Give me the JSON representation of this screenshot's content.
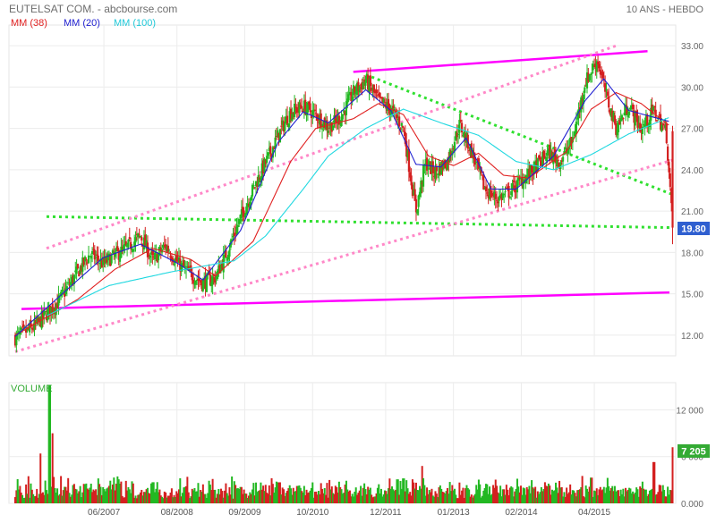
{
  "header": {
    "title": "EUTELSAT COM. - abcbourse.com",
    "period": "10 ANS - HEBDO",
    "legend": [
      {
        "label": "MM (38)",
        "color": "#e02020"
      },
      {
        "label": "MM (20)",
        "color": "#2020d0"
      },
      {
        "label": "MM (100)",
        "color": "#20d8e0"
      }
    ]
  },
  "chart_data": [
    {
      "type": "candlestick",
      "title": "EUTELSAT COM. - abcbourse.com",
      "period": "10 ANS - HEBDO",
      "x_tick_labels": [
        "06/2007",
        "08/2008",
        "09/2009",
        "10/2010",
        "12/2011",
        "01/2013",
        "02/2014",
        "04/2015"
      ],
      "y_tick_labels": [
        "12.00",
        "15.00",
        "18.00",
        "21.00",
        "24.00",
        "27.00",
        "30.00",
        "33.00"
      ],
      "ylim": [
        10.5,
        34.5
      ],
      "last_price": "19.80",
      "close_path": [
        [
          2006.0,
          11.8
        ],
        [
          2006.3,
          12.6
        ],
        [
          2006.7,
          14.5
        ],
        [
          2007.0,
          16.6
        ],
        [
          2007.2,
          17.9
        ],
        [
          2007.4,
          17.2
        ],
        [
          2007.6,
          17.8
        ],
        [
          2007.8,
          18.4
        ],
        [
          2008.0,
          19.2
        ],
        [
          2008.2,
          17.4
        ],
        [
          2008.4,
          18.5
        ],
        [
          2008.6,
          17.2
        ],
        [
          2008.8,
          16.4
        ],
        [
          2009.0,
          15.8
        ],
        [
          2009.2,
          16.2
        ],
        [
          2009.4,
          18.2
        ],
        [
          2009.6,
          20.5
        ],
        [
          2009.8,
          22.6
        ],
        [
          2010.0,
          24.5
        ],
        [
          2010.2,
          26.5
        ],
        [
          2010.4,
          28.2
        ],
        [
          2010.6,
          28.6
        ],
        [
          2010.8,
          28.0
        ],
        [
          2011.0,
          27.1
        ],
        [
          2011.2,
          27.8
        ],
        [
          2011.4,
          29.6
        ],
        [
          2011.6,
          30.5
        ],
        [
          2011.8,
          29.0
        ],
        [
          2012.0,
          28.4
        ],
        [
          2012.2,
          27.0
        ],
        [
          2012.4,
          21.0
        ],
        [
          2012.55,
          24.5
        ],
        [
          2012.7,
          23.8
        ],
        [
          2012.9,
          24.6
        ],
        [
          2013.1,
          27.3
        ],
        [
          2013.3,
          25.2
        ],
        [
          2013.5,
          22.6
        ],
        [
          2013.7,
          21.9
        ],
        [
          2013.9,
          22.4
        ],
        [
          2014.1,
          23.3
        ],
        [
          2014.3,
          24.1
        ],
        [
          2014.5,
          25.2
        ],
        [
          2014.7,
          24.6
        ],
        [
          2014.9,
          26.1
        ],
        [
          2015.1,
          30.3
        ],
        [
          2015.3,
          32.0
        ],
        [
          2015.45,
          29.2
        ],
        [
          2015.6,
          27.0
        ],
        [
          2015.8,
          28.7
        ],
        [
          2016.0,
          26.9
        ],
        [
          2016.2,
          28.3
        ],
        [
          2016.4,
          26.7
        ],
        [
          2016.5,
          19.8
        ]
      ],
      "moving_averages": [
        {
          "name": "MM (38)",
          "color": "#e02020",
          "path": [
            [
              2006.0,
              12.0
            ],
            [
              2007.0,
              14.6
            ],
            [
              2007.6,
              16.8
            ],
            [
              2008.2,
              18.3
            ],
            [
              2008.8,
              17.5
            ],
            [
              2009.2,
              16.3
            ],
            [
              2009.8,
              18.8
            ],
            [
              2010.4,
              24.6
            ],
            [
              2010.8,
              27.0
            ],
            [
              2011.4,
              27.7
            ],
            [
              2011.8,
              28.8
            ],
            [
              2012.2,
              28.0
            ],
            [
              2012.6,
              25.0
            ],
            [
              2013.0,
              24.3
            ],
            [
              2013.4,
              25.2
            ],
            [
              2013.8,
              23.6
            ],
            [
              2014.2,
              23.4
            ],
            [
              2014.8,
              25.3
            ],
            [
              2015.2,
              28.4
            ],
            [
              2015.6,
              29.6
            ],
            [
              2016.0,
              28.8
            ],
            [
              2016.45,
              27.2
            ]
          ]
        },
        {
          "name": "MM (20)",
          "color": "#2020d0",
          "path": [
            [
              2006.0,
              11.9
            ],
            [
              2006.8,
              15.2
            ],
            [
              2007.4,
              17.6
            ],
            [
              2008.0,
              18.6
            ],
            [
              2008.6,
              17.2
            ],
            [
              2009.0,
              16.0
            ],
            [
              2009.6,
              19.6
            ],
            [
              2010.2,
              26.0
            ],
            [
              2010.6,
              28.2
            ],
            [
              2011.0,
              27.4
            ],
            [
              2011.6,
              29.8
            ],
            [
              2012.0,
              28.3
            ],
            [
              2012.4,
              24.4
            ],
            [
              2012.8,
              24.2
            ],
            [
              2013.2,
              26.3
            ],
            [
              2013.6,
              22.6
            ],
            [
              2014.0,
              22.6
            ],
            [
              2014.6,
              25.0
            ],
            [
              2015.1,
              29.0
            ],
            [
              2015.4,
              30.6
            ],
            [
              2015.8,
              28.3
            ],
            [
              2016.45,
              27.5
            ]
          ]
        },
        {
          "name": "MM (100)",
          "color": "#20d8e0",
          "path": [
            [
              2006.5,
              13.4
            ],
            [
              2007.5,
              15.6
            ],
            [
              2008.5,
              16.6
            ],
            [
              2009.5,
              17.4
            ],
            [
              2010.0,
              19.2
            ],
            [
              2010.6,
              22.6
            ],
            [
              2011.0,
              25.0
            ],
            [
              2011.6,
              27.0
            ],
            [
              2012.2,
              28.4
            ],
            [
              2012.8,
              27.4
            ],
            [
              2013.4,
              26.5
            ],
            [
              2014.0,
              24.6
            ],
            [
              2014.6,
              24.0
            ],
            [
              2015.2,
              25.1
            ],
            [
              2015.8,
              26.6
            ],
            [
              2016.45,
              27.8
            ]
          ]
        }
      ],
      "trend_lines": [
        {
          "style": "solid",
          "color": "#ff00ff",
          "points": [
            [
              2011.4,
              31.1
            ],
            [
              2016.1,
              32.6
            ]
          ]
        },
        {
          "style": "solid",
          "color": "#ff00ff",
          "points": [
            [
              2006.1,
              13.9
            ],
            [
              2016.45,
              15.1
            ]
          ]
        },
        {
          "style": "dotted",
          "color": "#30e030",
          "points": [
            [
              2006.5,
              20.6
            ],
            [
              2016.5,
              19.8
            ]
          ]
        },
        {
          "style": "dotted",
          "color": "#30e030",
          "points": [
            [
              2011.6,
              30.9
            ],
            [
              2016.5,
              22.2
            ]
          ]
        },
        {
          "style": "dotted",
          "color": "#ff88c8",
          "points": [
            [
              2006.5,
              18.3
            ],
            [
              2015.6,
              33.0
            ]
          ]
        },
        {
          "style": "dotted",
          "color": "#ff88c8",
          "points": [
            [
              2006.0,
              10.8
            ],
            [
              2016.5,
              24.7
            ]
          ]
        }
      ]
    },
    {
      "type": "bar",
      "title": "VOLUME",
      "y_tick_labels": [
        "0.000",
        "6 000",
        "12 000"
      ],
      "ylim": [
        0,
        15500
      ],
      "last_volume": "7 205",
      "peaks": [
        [
          2006.4,
          6400
        ],
        [
          2006.55,
          15200
        ],
        [
          2006.6,
          9000
        ],
        [
          2007.1,
          2500
        ],
        [
          2009.1,
          2900
        ],
        [
          2010.2,
          2700
        ],
        [
          2012.2,
          3200
        ],
        [
          2012.5,
          4800
        ],
        [
          2013.8,
          1800
        ],
        [
          2015.2,
          3300
        ],
        [
          2016.2,
          5300
        ],
        [
          2016.5,
          7205
        ]
      ]
    }
  ]
}
